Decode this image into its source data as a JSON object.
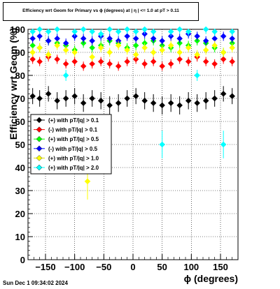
{
  "title": "Efficiency wrt Geom for Primary vs ϕ (degrees) at |  η  | <= 1.0 at pT > 0.11",
  "footer": "Sun Dec  1 09:34:02 2024",
  "chart_data": {
    "type": "scatter",
    "xlabel": "ϕ (degrees)",
    "ylabel": "Efficiency wrt Geom (%)",
    "xlim": [
      -180,
      180
    ],
    "ylim": [
      0,
      100
    ],
    "xticks": [
      -150,
      -100,
      -50,
      0,
      50,
      100,
      150
    ],
    "yticks": [
      0,
      10,
      20,
      30,
      40,
      50,
      60,
      70,
      80,
      90,
      100
    ],
    "grid": true,
    "legend_position": "center-left",
    "series": [
      {
        "name": "(+) with pT/|q| > 0.1",
        "color": "#000000",
        "marker": "diamond",
        "x": [
          -172,
          -160,
          -145,
          -130,
          -115,
          -100,
          -85,
          -70,
          -55,
          -40,
          -25,
          -10,
          5,
          20,
          35,
          50,
          65,
          80,
          95,
          110,
          125,
          140,
          155,
          170
        ],
        "y": [
          71,
          70,
          72,
          69,
          70,
          71,
          68,
          70,
          69,
          67,
          68,
          70,
          71,
          69,
          68,
          67,
          68,
          67,
          69,
          68,
          69,
          70,
          72,
          71
        ]
      },
      {
        "name": "(-) with pT/|q| > 0.1",
        "color": "#ff0000",
        "marker": "diamond",
        "x": [
          -172,
          -160,
          -145,
          -130,
          -115,
          -100,
          -85,
          -70,
          -55,
          -40,
          -25,
          -10,
          5,
          20,
          35,
          50,
          65,
          80,
          95,
          110,
          125,
          140,
          155,
          170
        ],
        "y": [
          87,
          86,
          88,
          87,
          85,
          86,
          84,
          85,
          86,
          85,
          84,
          86,
          87,
          85,
          86,
          84,
          85,
          87,
          86,
          88,
          86,
          85,
          87,
          86
        ]
      },
      {
        "name": "(+) with pT/|q| > 0.5",
        "color": "#00ff00",
        "marker": "diamond",
        "x": [
          -172,
          -160,
          -145,
          -130,
          -115,
          -100,
          -85,
          -70,
          -55,
          -40,
          -25,
          -10,
          5,
          20,
          35,
          50,
          65,
          80,
          95,
          110,
          125,
          140,
          155,
          170
        ],
        "y": [
          93,
          92,
          95,
          94,
          93,
          91,
          94,
          92,
          93,
          95,
          94,
          92,
          93,
          94,
          95,
          93,
          92,
          94,
          93,
          95,
          94,
          92,
          90,
          94
        ]
      },
      {
        "name": "(-) with pT/|q| > 0.5",
        "color": "#0000ff",
        "marker": "diamond",
        "x": [
          -172,
          -160,
          -145,
          -130,
          -115,
          -100,
          -85,
          -70,
          -55,
          -40,
          -25,
          -10,
          5,
          20,
          35,
          50,
          65,
          80,
          95,
          110,
          125,
          140,
          155,
          170
        ],
        "y": [
          96,
          97,
          95,
          96,
          94,
          97,
          96,
          95,
          97,
          96,
          95,
          97,
          96,
          98,
          96,
          95,
          97,
          96,
          98,
          97,
          95,
          96,
          97,
          96
        ]
      },
      {
        "name": "(+) with pT/|q| > 1.0",
        "color": "#ffff00",
        "marker": "diamond",
        "x": [
          -172,
          -160,
          -145,
          -130,
          -115,
          -100,
          -78,
          -70,
          -55,
          -40,
          -25,
          -10,
          5,
          20,
          35,
          50,
          65,
          80,
          95,
          110,
          125,
          140,
          155,
          170
        ],
        "y": [
          90,
          92,
          89,
          93,
          91,
          90,
          34,
          88,
          92,
          90,
          93,
          91,
          89,
          92,
          90,
          91,
          93,
          90,
          92,
          89,
          91,
          93,
          90,
          92
        ]
      },
      {
        "name": "(+) with pT/|q| > 2.0",
        "color": "#00ffff",
        "marker": "diamond",
        "x": [
          -172,
          -160,
          -145,
          -130,
          -115,
          -100,
          -85,
          -70,
          -55,
          -40,
          -25,
          -10,
          5,
          20,
          35,
          50,
          65,
          80,
          95,
          110,
          125,
          140,
          155,
          170
        ],
        "y": [
          99,
          100,
          99,
          100,
          80,
          99,
          100,
          99,
          98,
          100,
          99,
          100,
          99,
          100,
          99,
          50,
          99,
          100,
          99,
          80,
          100,
          99,
          50,
          99
        ]
      }
    ]
  }
}
